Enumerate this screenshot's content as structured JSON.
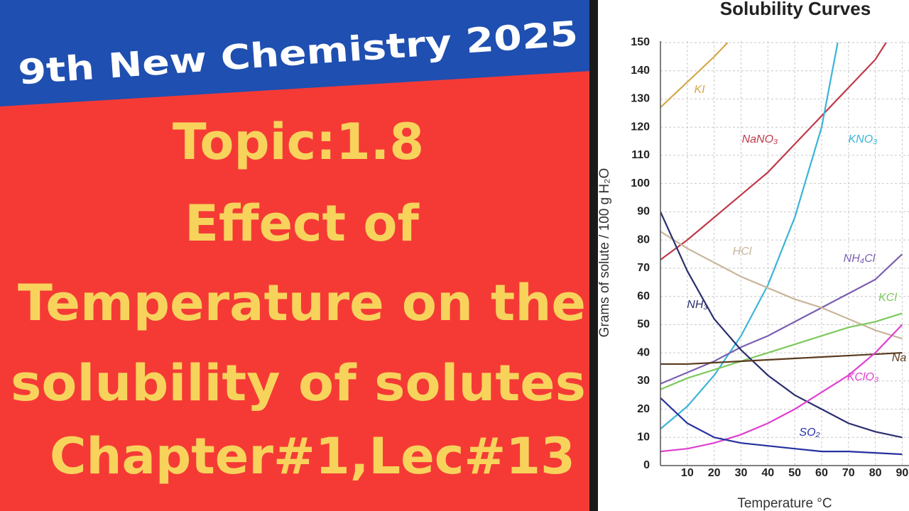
{
  "thumbnail": {
    "banner": "9th New Chemistry 2025",
    "lines": [
      "Topic:1.8",
      "Effect of",
      "Temperature on the",
      "solubility of solutes",
      "Chapter#1,Lec#13"
    ]
  },
  "chart_data": {
    "type": "line",
    "title": "Solubility Curves",
    "xlabel": "Temperature °C",
    "ylabel": "Grams of solute / 100 g H₂O",
    "xlim": [
      0,
      92
    ],
    "ylim": [
      0,
      150
    ],
    "xticks": [
      10,
      20,
      30,
      40,
      50,
      60,
      70,
      80,
      90
    ],
    "yticks": [
      0,
      10,
      20,
      30,
      40,
      50,
      60,
      70,
      80,
      90,
      100,
      110,
      120,
      130,
      140,
      150
    ],
    "grid": true,
    "series": [
      {
        "name": "KI",
        "color": "#d4a84a",
        "x": [
          0,
          10,
          20,
          25
        ],
        "values": [
          127,
          136,
          145,
          150
        ]
      },
      {
        "name": "NaNO₃",
        "color": "#c0394a",
        "x": [
          0,
          10,
          20,
          30,
          40,
          50,
          60,
          70,
          80,
          84
        ],
        "values": [
          73,
          80,
          88,
          96,
          104,
          114,
          124,
          134,
          144,
          150
        ]
      },
      {
        "name": "KNO₃",
        "color": "#3bb4d8",
        "x": [
          0,
          10,
          20,
          30,
          40,
          50,
          60,
          66
        ],
        "values": [
          13,
          21,
          32,
          46,
          64,
          88,
          120,
          150
        ]
      },
      {
        "name": "NH₄Cl",
        "color": "#7b5fb0",
        "x": [
          0,
          10,
          20,
          30,
          40,
          50,
          60,
          70,
          80,
          90
        ],
        "values": [
          29,
          33,
          37,
          42,
          46,
          51,
          56,
          61,
          66,
          75
        ]
      },
      {
        "name": "HCl",
        "color": "#c9b59a",
        "x": [
          0,
          10,
          20,
          30,
          40,
          50,
          60,
          70,
          80,
          90
        ],
        "values": [
          83,
          77,
          72,
          67,
          63,
          59,
          56,
          52,
          48,
          45
        ]
      },
      {
        "name": "KCl",
        "color": "#7dc95e",
        "x": [
          0,
          10,
          20,
          30,
          40,
          50,
          60,
          70,
          80,
          90
        ],
        "values": [
          27,
          31,
          34,
          37,
          40,
          43,
          46,
          49,
          51,
          54
        ]
      },
      {
        "name": "NH₃",
        "color": "#2a2f6e",
        "x": [
          0,
          10,
          20,
          30,
          40,
          50,
          60,
          70,
          80,
          90
        ],
        "values": [
          90,
          69,
          52,
          41,
          32,
          25,
          20,
          15,
          12,
          10
        ]
      },
      {
        "name": "Na",
        "color": "#5a3a1e",
        "x": [
          0,
          10,
          20,
          30,
          40,
          50,
          60,
          70,
          80,
          90
        ],
        "values": [
          36,
          36,
          36.5,
          37,
          37.5,
          38,
          38.5,
          39,
          39.5,
          40
        ]
      },
      {
        "name": "KClO₃",
        "color": "#e040d0",
        "x": [
          0,
          10,
          20,
          30,
          40,
          50,
          60,
          70,
          80,
          90
        ],
        "values": [
          5,
          6,
          8,
          11,
          15,
          20,
          26,
          32,
          40,
          50
        ]
      },
      {
        "name": "SO₂",
        "color": "#2530a0",
        "x": [
          0,
          10,
          20,
          30,
          40,
          50,
          60,
          70,
          80,
          90
        ],
        "values": [
          24,
          15,
          10,
          8,
          7,
          6,
          5,
          5,
          4.5,
          4
        ]
      }
    ]
  }
}
